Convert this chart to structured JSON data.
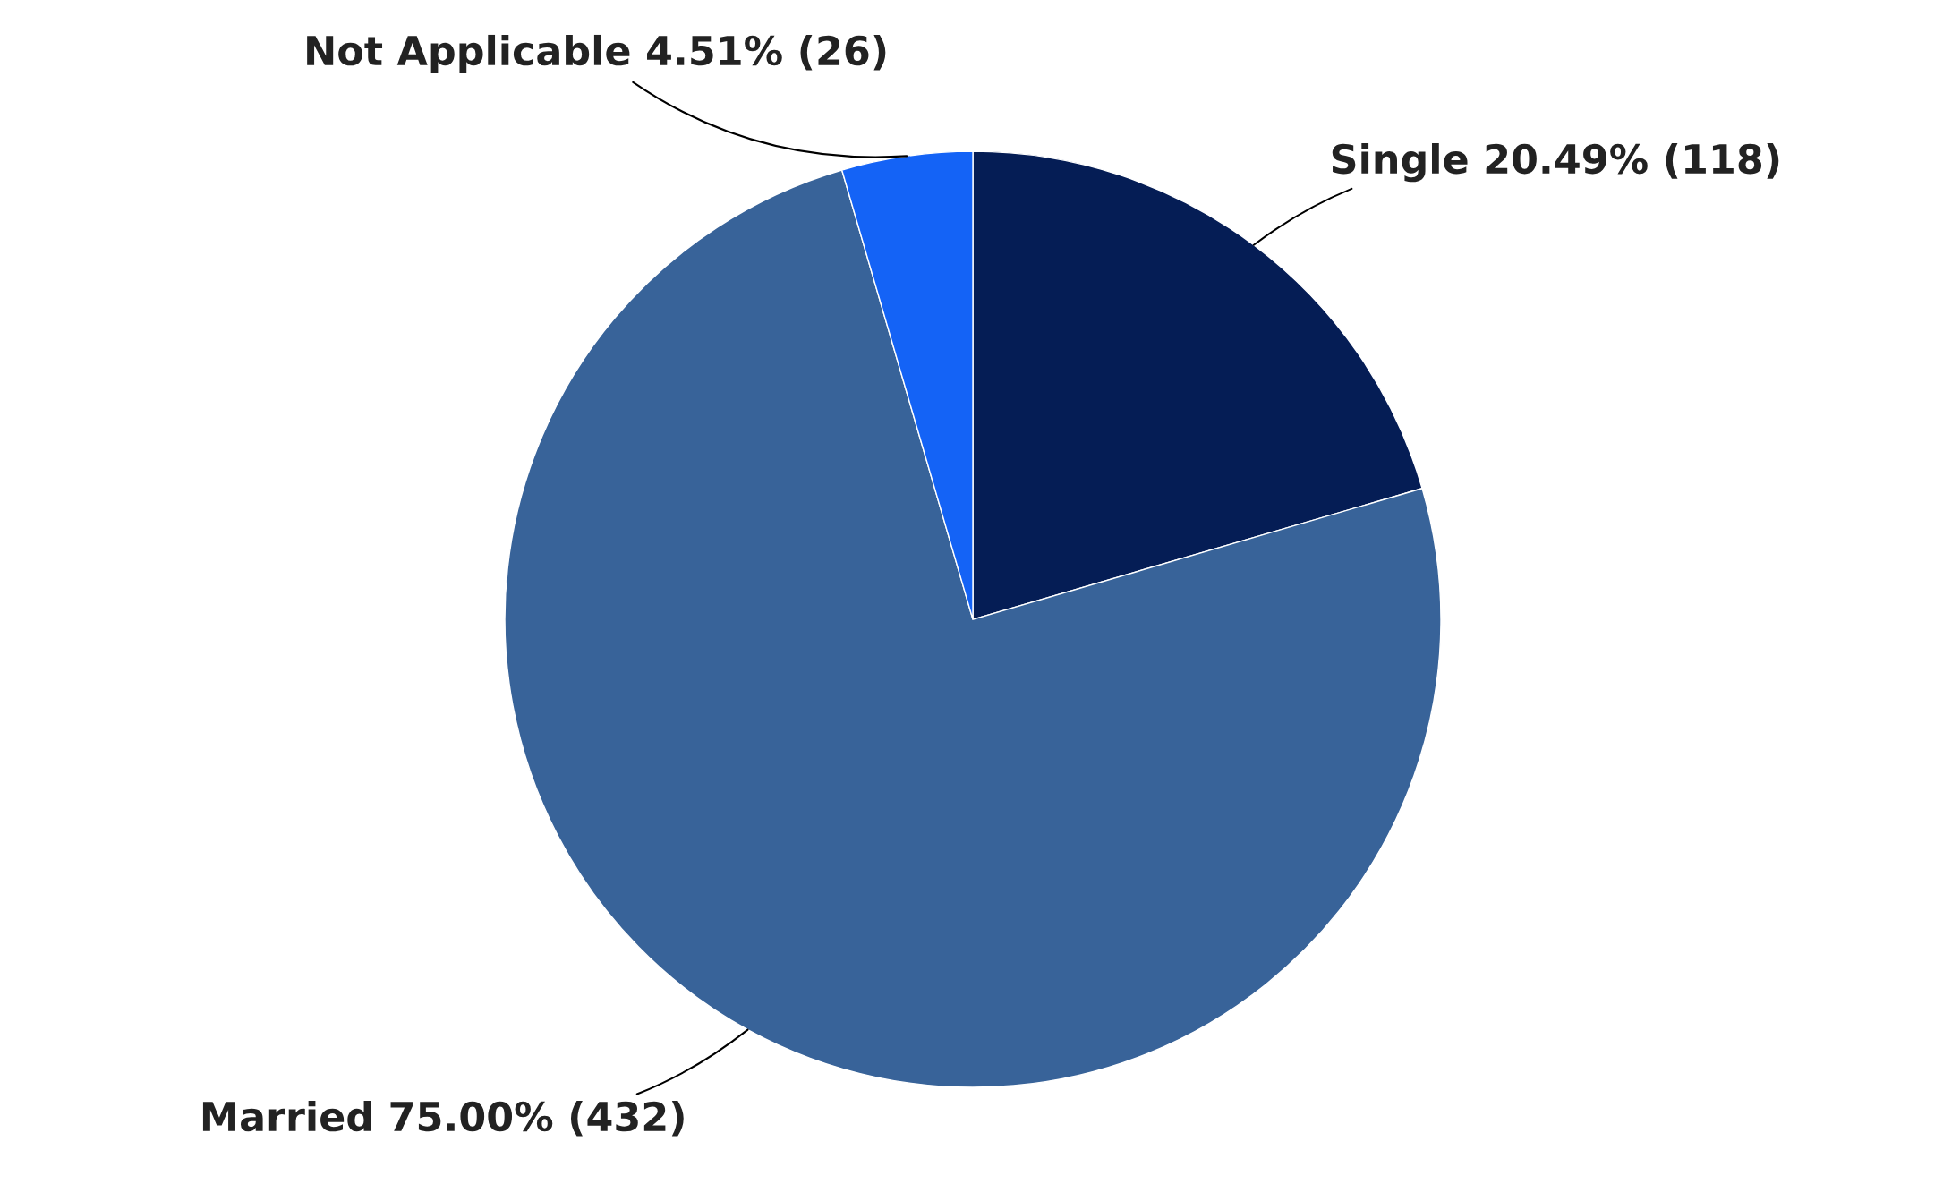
{
  "chart_data": {
    "type": "pie",
    "categories": [
      "Single",
      "Married",
      "Not Applicable"
    ],
    "values": [
      118,
      432,
      26
    ],
    "colors": [
      "#051d55",
      "#386399",
      "#1463f6"
    ],
    "value_labels": [
      "20.49% (118)",
      "75.00% (432)",
      "4.51% (26)"
    ]
  }
}
